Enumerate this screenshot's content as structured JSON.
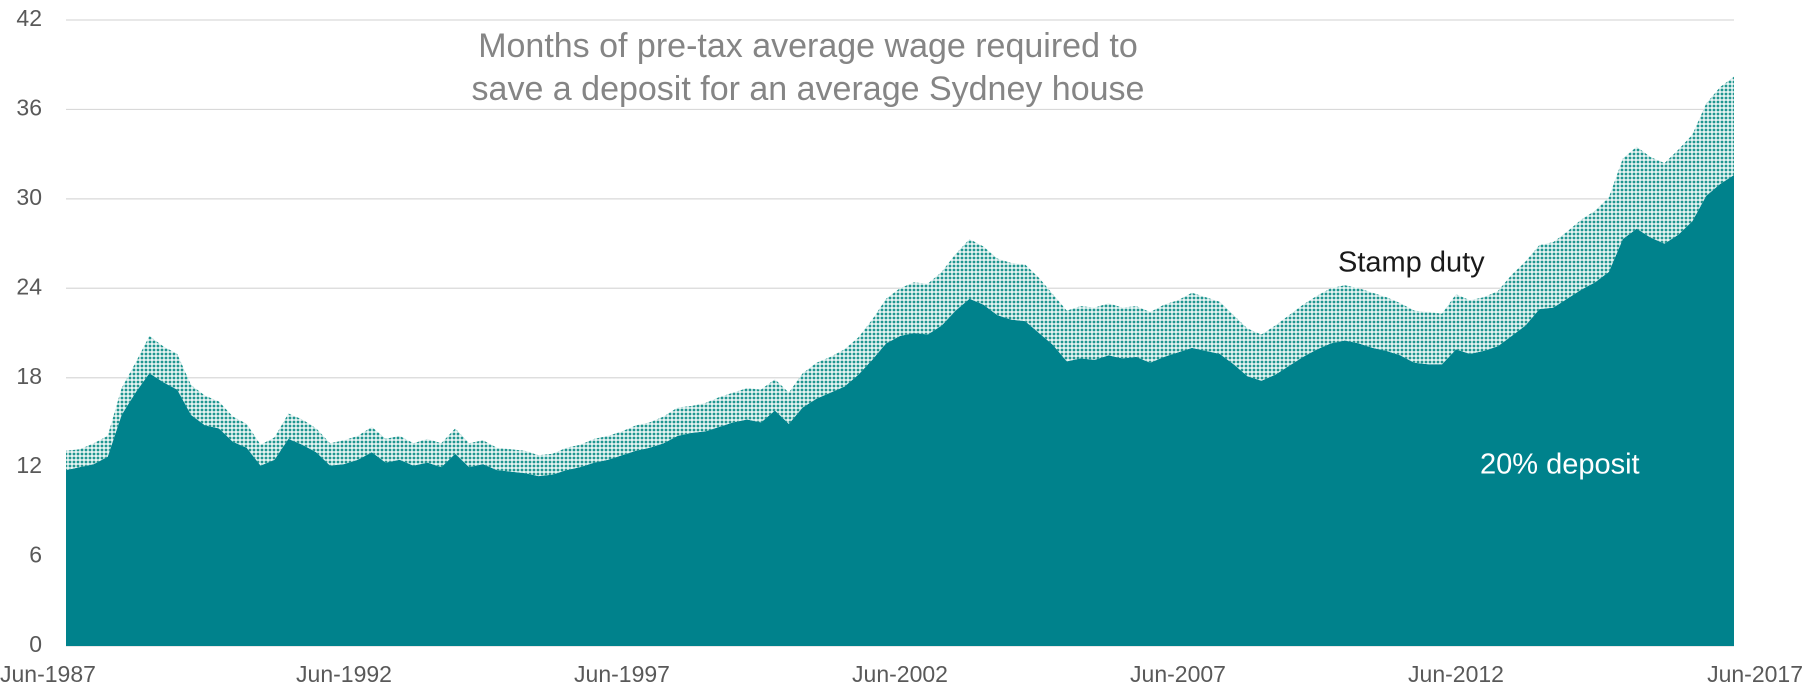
{
  "chart_data": {
    "type": "stacked_area",
    "title": [
      "Months of pre-tax average wage required to",
      "save a deposit for an average Sydney house"
    ],
    "categories": [
      "Jun-1987",
      null,
      null,
      null,
      null,
      null,
      null,
      null,
      null,
      null,
      null,
      null,
      null,
      null,
      null,
      null,
      null,
      null,
      null,
      null,
      "Jun-1992",
      null,
      null,
      null,
      null,
      null,
      null,
      null,
      null,
      null,
      null,
      null,
      null,
      null,
      null,
      null,
      null,
      null,
      null,
      null,
      "Jun-1997",
      null,
      null,
      null,
      null,
      null,
      null,
      null,
      null,
      null,
      null,
      null,
      null,
      null,
      null,
      null,
      null,
      null,
      null,
      null,
      "Jun-2002",
      null,
      null,
      null,
      null,
      null,
      null,
      null,
      null,
      null,
      null,
      null,
      null,
      null,
      null,
      null,
      null,
      null,
      null,
      null,
      "Jun-2007",
      null,
      null,
      null,
      null,
      null,
      null,
      null,
      null,
      null,
      null,
      null,
      null,
      null,
      null,
      null,
      null,
      null,
      null,
      null,
      "Jun-2012",
      null,
      null,
      null,
      null,
      null,
      null,
      null,
      null,
      null,
      null,
      null,
      null,
      null,
      null,
      null,
      null,
      null,
      null,
      null,
      "Jun-2017"
    ],
    "series": [
      {
        "name": "20% deposit",
        "color": "#00828c",
        "values": [
          11.8,
          12.0,
          12.2,
          12.7,
          15.5,
          17.0,
          18.3,
          17.7,
          17.2,
          15.5,
          14.8,
          14.6,
          13.7,
          13.3,
          12.1,
          12.5,
          13.9,
          13.5,
          13.0,
          12.1,
          12.2,
          12.5,
          13.0,
          12.3,
          12.5,
          12.1,
          12.3,
          12.0,
          12.9,
          12.0,
          12.2,
          11.8,
          11.7,
          11.6,
          11.4,
          11.5,
          11.8,
          12.0,
          12.3,
          12.5,
          12.8,
          13.1,
          13.3,
          13.6,
          14.1,
          14.3,
          14.4,
          14.7,
          15.0,
          15.2,
          15.0,
          15.8,
          14.9,
          16.0,
          16.6,
          17.0,
          17.4,
          18.2,
          19.2,
          20.3,
          20.8,
          21.0,
          20.9,
          21.5,
          22.5,
          23.3,
          22.9,
          22.2,
          21.9,
          21.8,
          21.0,
          20.2,
          19.1,
          19.3,
          19.2,
          19.5,
          19.3,
          19.4,
          19.0,
          19.4,
          19.7,
          20.0,
          19.8,
          19.6,
          18.9,
          18.1,
          17.8,
          18.2,
          18.8,
          19.4,
          19.9,
          20.3,
          20.5,
          20.3,
          20.0,
          19.8,
          19.5,
          19.0,
          18.9,
          18.9,
          19.9,
          19.6,
          19.8,
          20.1,
          20.8,
          21.5,
          22.6,
          22.7,
          23.3,
          23.9,
          24.4,
          25.1,
          27.3,
          28.0,
          27.4,
          27.0,
          27.6,
          28.5,
          30.2,
          31.0,
          31.6
        ]
      },
      {
        "name": "Stamp duty",
        "color": "#1f9690",
        "values": [
          1.3,
          1.2,
          1.4,
          1.4,
          1.8,
          2.0,
          2.5,
          2.4,
          2.4,
          2.0,
          2.0,
          1.8,
          1.7,
          1.6,
          1.4,
          1.5,
          1.7,
          1.7,
          1.6,
          1.5,
          1.6,
          1.6,
          1.7,
          1.6,
          1.6,
          1.5,
          1.6,
          1.6,
          1.7,
          1.6,
          1.6,
          1.5,
          1.5,
          1.5,
          1.4,
          1.4,
          1.5,
          1.5,
          1.6,
          1.6,
          1.6,
          1.7,
          1.7,
          1.8,
          1.9,
          1.8,
          1.9,
          2.0,
          2.0,
          2.1,
          2.2,
          2.1,
          2.1,
          2.3,
          2.4,
          2.4,
          2.5,
          2.5,
          2.7,
          3.0,
          3.2,
          3.4,
          3.4,
          3.6,
          3.8,
          4.0,
          3.9,
          3.8,
          3.8,
          3.8,
          3.7,
          3.4,
          3.4,
          3.5,
          3.5,
          3.5,
          3.4,
          3.4,
          3.4,
          3.5,
          3.5,
          3.7,
          3.6,
          3.5,
          3.3,
          3.2,
          3.1,
          3.3,
          3.4,
          3.5,
          3.6,
          3.7,
          3.7,
          3.7,
          3.7,
          3.6,
          3.5,
          3.5,
          3.5,
          3.4,
          3.7,
          3.6,
          3.6,
          3.7,
          4.1,
          4.3,
          4.3,
          4.4,
          4.5,
          4.7,
          4.8,
          5.0,
          5.4,
          5.5,
          5.4,
          5.4,
          5.7,
          5.8,
          6.2,
          6.5,
          6.6
        ]
      }
    ],
    "ylim": [
      0,
      42
    ],
    "yticks": [
      0,
      6,
      12,
      18,
      24,
      30,
      36,
      42
    ],
    "grid": true
  }
}
